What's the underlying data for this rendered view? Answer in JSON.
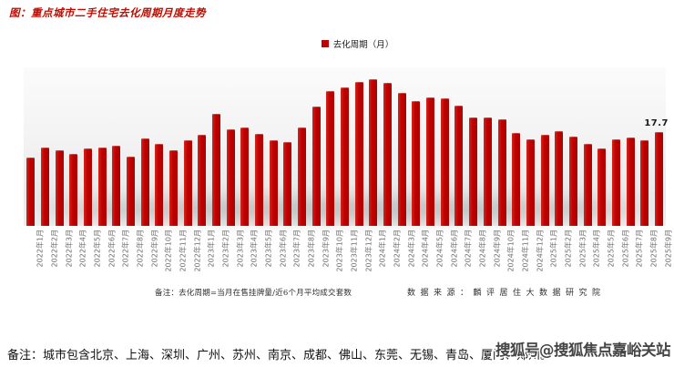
{
  "figure": {
    "title": "图：重点城市二手住宅去化周期月度走势",
    "legend_label": "去化周期（月）",
    "note_formula": "备注：去化周期=当月在售挂牌量/近6个月平均成交套数",
    "note_source": "数据来源：麟评居住大数据研究院",
    "bottom_note": "备注：城市包含北京、上海、深圳、广州、苏州、南京、成都、佛山、东莞、无锡、青岛、厦门、郑州。",
    "watermark": "搜狐号@搜狐焦点嘉峪关站",
    "colors": {
      "bar": "#c00000",
      "title": "#bf0b00",
      "legend_square": "#c00000",
      "axis_label": "#6e6e6e",
      "plot_background": "#efefef"
    }
  },
  "chart_data": {
    "type": "bar",
    "title": "重点城市二手住宅去化周期月度走势",
    "ylabel": "去化周期（月）",
    "xlabel": "",
    "legend": [
      "去化周期（月）"
    ],
    "legend_position": "top-center",
    "grid": false,
    "ylim": [
      0,
      30
    ],
    "categories": [
      "2022年1月",
      "2022年2月",
      "2022年3月",
      "2022年4月",
      "2022年5月",
      "2022年6月",
      "2022年7月",
      "2022年8月",
      "2022年9月",
      "2022年10月",
      "2022年11月",
      "2022年12月",
      "2023年1月",
      "2023年2月",
      "2023年3月",
      "2023年4月",
      "2023年5月",
      "2023年6月",
      "2023年7月",
      "2023年8月",
      "2023年9月",
      "2023年10月",
      "2023年11月",
      "2023年12月",
      "2024年1月",
      "2024年2月",
      "2024年3月",
      "2024年4月",
      "2024年5月",
      "2024年6月",
      "2024年7月",
      "2024年8月",
      "2024年9月",
      "2024年10月",
      "2024年11月",
      "2024年12月",
      "2025年1月",
      "2025年2月",
      "2025年3月",
      "2025年4月",
      "2025年5月",
      "2025年6月",
      "2025年7月",
      "2025年8月",
      "2025年9月"
    ],
    "values": [
      12.9,
      14.9,
      14.3,
      13.7,
      14.6,
      14.8,
      15.2,
      13.1,
      16.5,
      15.5,
      14.4,
      16.2,
      17.2,
      21.3,
      18.3,
      18.7,
      17.5,
      16.2,
      15.9,
      18.7,
      22.6,
      25.5,
      26.2,
      27.2,
      27.7,
      27.0,
      25.2,
      23.6,
      24.3,
      24.1,
      22.8,
      20.6,
      20.6,
      20.1,
      17.6,
      16.4,
      17.2,
      18.0,
      16.9,
      15.6,
      14.7,
      16.4,
      16.8,
      16.3,
      17.7
    ],
    "data_label": {
      "category": "2025年9月",
      "text": "17.7",
      "value": 17.7
    }
  }
}
